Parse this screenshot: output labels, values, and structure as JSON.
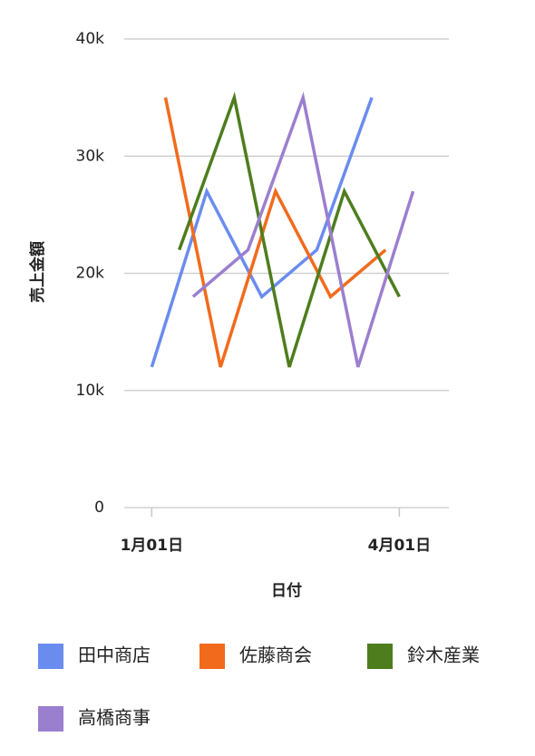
{
  "chart_data": {
    "type": "line",
    "x_label": "日付",
    "y_label": "売上金額",
    "xlim": [
      -10,
      108
    ],
    "xticks": [
      {
        "value": 0,
        "label": "1月01日"
      },
      {
        "value": 90,
        "label": "4月01日"
      }
    ],
    "ylim": [
      0,
      40000
    ],
    "yticks": [
      0,
      {
        "value": 10000,
        "label": "10k"
      },
      {
        "value": 20000,
        "label": "20k"
      },
      {
        "value": 30000,
        "label": "30k"
      },
      {
        "value": 40000,
        "label": "40k"
      }
    ],
    "grid": true,
    "legend": "bottom",
    "series": [
      {
        "name": "田中商店",
        "color": "#6b8cef",
        "x": [
          0,
          20,
          40,
          60,
          80
        ],
        "values": [
          12000,
          27000,
          18000,
          22000,
          35000
        ]
      },
      {
        "name": "佐藤商会",
        "color": "#f26b1d",
        "x": [
          5,
          25,
          45,
          65,
          85
        ],
        "values": [
          35000,
          12000,
          27000,
          18000,
          22000
        ]
      },
      {
        "name": "鈴木産業",
        "color": "#4e7d1e",
        "x": [
          10,
          30,
          50,
          70,
          90
        ],
        "values": [
          22000,
          35000,
          12000,
          27000,
          18000
        ]
      },
      {
        "name": "高橋商事",
        "color": "#9b7fcf",
        "x": [
          15,
          35,
          55,
          75,
          95
        ],
        "values": [
          18000,
          22000,
          35000,
          12000,
          27000
        ]
      }
    ]
  }
}
